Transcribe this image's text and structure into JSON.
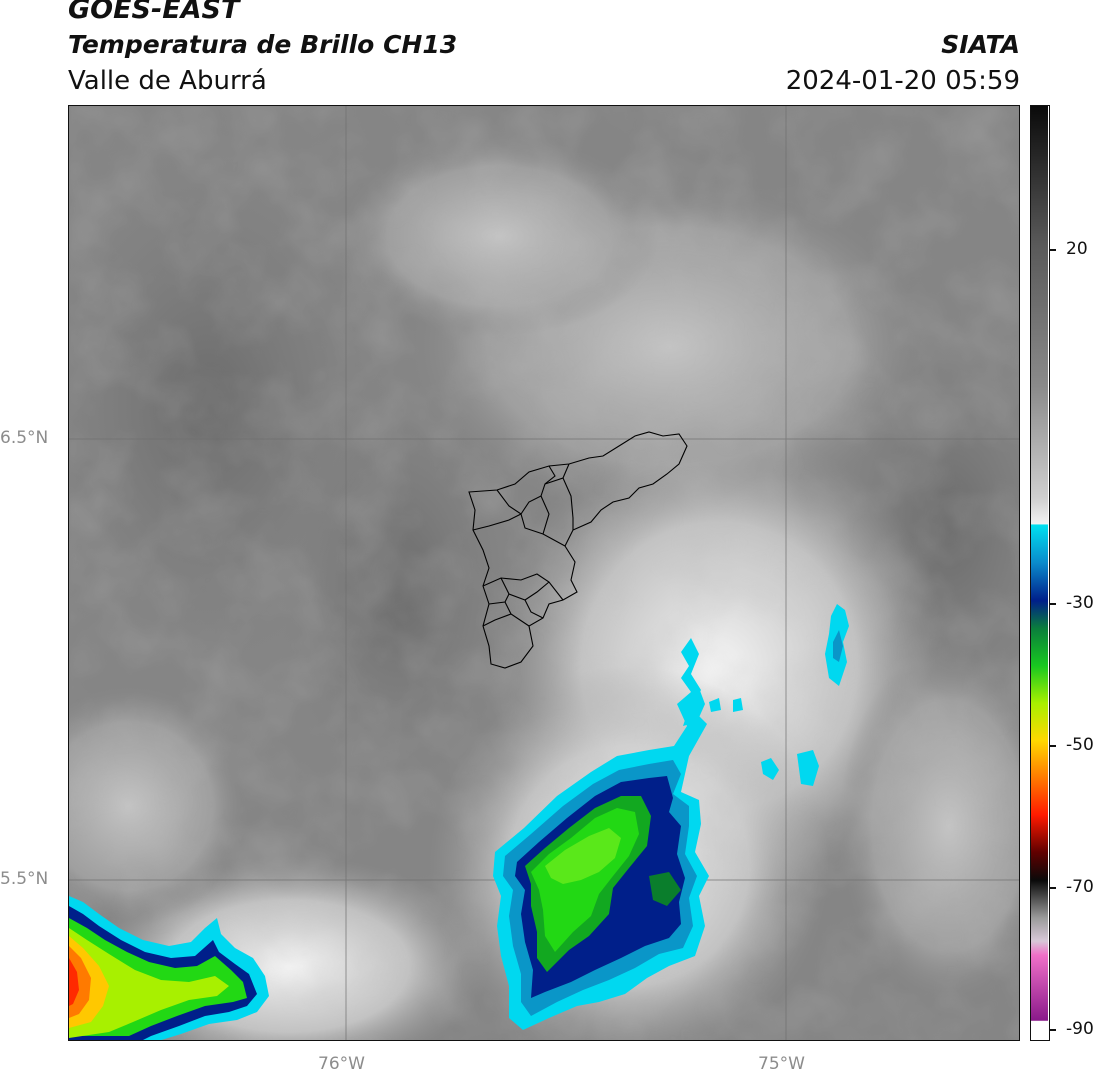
{
  "header": {
    "satellite": "GOES-EAST",
    "product": "Temperatura de Brillo CH13",
    "region": "Valle de Aburrá",
    "organization": "SIATA",
    "datetime": "2024-01-20 05:59"
  },
  "map": {
    "lat_labels": [
      "6.5°N",
      "5.5°N"
    ],
    "lon_labels": [
      "76°W",
      "75°W"
    ]
  },
  "colorbar": {
    "ticks": [
      "20",
      "-30",
      "-50",
      "-70",
      "-90"
    ]
  },
  "colors": {
    "cold_cloud_cyan": "#00d8f0",
    "deep_blue": "#001f8a",
    "green": "#22d814",
    "yellow_green": "#a8f000",
    "orange": "#ff7a00",
    "red": "#ff2a00"
  }
}
